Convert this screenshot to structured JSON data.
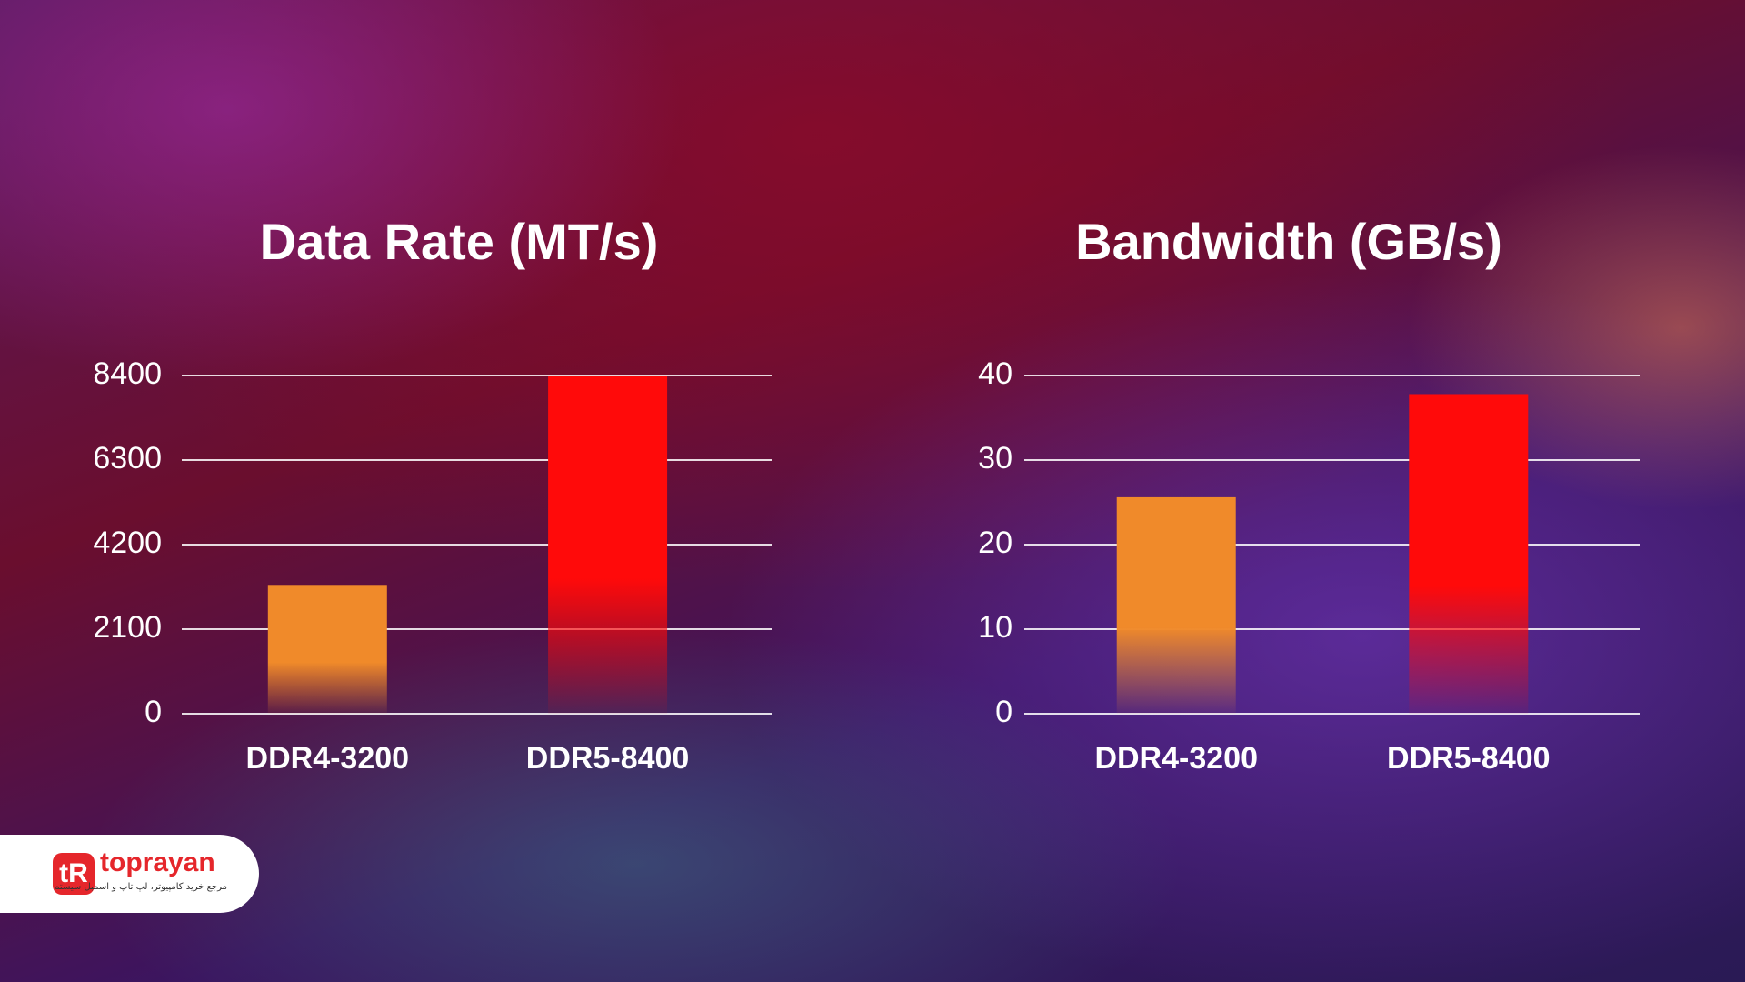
{
  "chart_data": [
    {
      "type": "bar",
      "title": "Data Rate (MT/s)",
      "categories": [
        "DDR4-3200",
        "DDR5-8400"
      ],
      "values": [
        3200,
        8400
      ],
      "colors": [
        "#f08a2a",
        "#ff0a0a"
      ],
      "ylim": [
        0,
        8400
      ],
      "yticks": [
        0,
        2100,
        4200,
        6300,
        8400
      ],
      "grid": true
    },
    {
      "type": "bar",
      "title": "Bandwidth (GB/s)",
      "categories": [
        "DDR4-3200",
        "DDR5-8400"
      ],
      "values": [
        25.6,
        37.8
      ],
      "colors": [
        "#f08a2a",
        "#ff0a0a"
      ],
      "ylim": [
        0,
        40
      ],
      "yticks": [
        0,
        10,
        20,
        30,
        40
      ],
      "grid": true
    }
  ],
  "logo": {
    "name": "toprayan",
    "tagline": "مرجع خرید کامپیوتر، لپ تاپ و اسمبل سیستم"
  }
}
